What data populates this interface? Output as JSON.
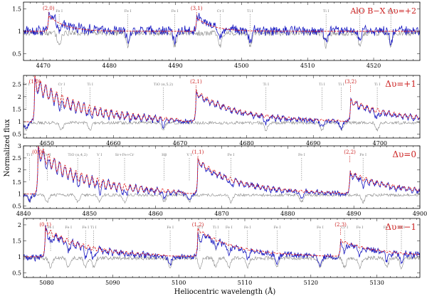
{
  "figure": {
    "ylabel": "Normalized flux",
    "xlabel": "Heliocentric wavelength (Å)"
  },
  "colors": {
    "observed": "#1515c0",
    "model": "#e02020",
    "reference": "#8a8a8a",
    "label": "#cc2222",
    "line_id": "#777777"
  },
  "chart_data": [
    {
      "type": "line",
      "title": "AlO B−X Δυ=+2",
      "xlim": [
        4467,
        4527
      ],
      "ylim": [
        0.35,
        1.65
      ],
      "yticks": [
        0.5,
        1,
        1.5
      ],
      "xticks": [
        4470,
        4480,
        4490,
        4500,
        4510,
        4520
      ],
      "series": [
        {
          "name": "observed spectrum",
          "color": "#1515c0"
        },
        {
          "name": "AlO model",
          "color": "#e02020"
        },
        {
          "name": "comparison spectrum",
          "color": "#8a8a8a"
        }
      ],
      "bandheads": [
        {
          "label": "(2,0)",
          "x": 4470.8
        },
        {
          "label": "(3,1)",
          "x": 4493.2
        }
      ],
      "line_ids": [
        {
          "label": "Fe I",
          "x": 4472.4
        },
        {
          "label": "Fe I",
          "x": 4482.8
        },
        {
          "label": "Fe I",
          "x": 4489.9
        },
        {
          "label": "Cr I",
          "x": 4496.8
        },
        {
          "label": "Ti I",
          "x": 4501.3
        },
        {
          "label": "Ti I",
          "x": 4512.8
        },
        {
          "label": "Fe I",
          "x": 4517.9
        },
        {
          "label": "Fe I",
          "x": 4522.6
        }
      ]
    },
    {
      "type": "line",
      "title": "Δυ=+1",
      "xlim": [
        4646.5,
        4706
      ],
      "ylim": [
        0.35,
        2.85
      ],
      "yticks": [
        0.5,
        1,
        1.5,
        2,
        2.5
      ],
      "xticks": [
        4650,
        4660,
        4670,
        4680,
        4690,
        4700
      ],
      "series": [
        {
          "name": "observed spectrum",
          "color": "#1515c0"
        },
        {
          "name": "AlO model",
          "color": "#e02020"
        },
        {
          "name": "comparison spectrum",
          "color": "#8a8a8a"
        }
      ],
      "bandheads": [
        {
          "label": "(1,0)",
          "x": 4648.2
        },
        {
          "label": "(2,1)",
          "x": 4672.4
        },
        {
          "label": "(3,2)",
          "x": 4695.6
        }
      ],
      "line_ids": [
        {
          "label": "Cr I",
          "x": 4646.9
        },
        {
          "label": "Cr I",
          "x": 4652.2
        },
        {
          "label": "Ti I",
          "x": 4656.5
        },
        {
          "label": "TiO (α,5,2)",
          "x": 4667.5
        },
        {
          "label": "Ti I",
          "x": 4682.9
        },
        {
          "label": "Ti I",
          "x": 4691.3
        },
        {
          "label": "Ti I",
          "x": 4694.2
        },
        {
          "label": "Ti I",
          "x": 4699.6
        }
      ]
    },
    {
      "type": "line",
      "title": "Δυ=0",
      "xlim": [
        4840,
        4900
      ],
      "ylim": [
        0.4,
        3.0
      ],
      "yticks": [
        0.5,
        1,
        1.5,
        2,
        2.5,
        3
      ],
      "xticks": [
        4840,
        4850,
        4860,
        4870,
        4880,
        4890,
        4900
      ],
      "series": [
        {
          "name": "observed spectrum",
          "color": "#1515c0"
        },
        {
          "name": "AlO model",
          "color": "#e02020"
        },
        {
          "name": "comparison spectrum",
          "color": "#8a8a8a"
        }
      ],
      "bandheads": [
        {
          "label": "(0,0)",
          "x": 4842.2
        },
        {
          "label": "(1,1)",
          "x": 4866.4
        },
        {
          "label": "(2,2)",
          "x": 4889.4
        }
      ],
      "line_ids": [
        {
          "label": "Ti I",
          "x": 4840.9
        },
        {
          "label": "Fe I",
          "x": 4843.6
        },
        {
          "label": "TiO (α,4,2)",
          "x": 4848.2
        },
        {
          "label": "V I",
          "x": 4851.5
        },
        {
          "label": "Sr+Fe+Cr",
          "x": 4855.3
        },
        {
          "label": "Hβ",
          "x": 4861.3
        },
        {
          "label": "V I",
          "x": 4865.1
        },
        {
          "label": "Fe I",
          "x": 4871.4
        },
        {
          "label": "Fe I",
          "x": 4882.1
        },
        {
          "label": "Fe I",
          "x": 4891.4
        }
      ]
    },
    {
      "type": "line",
      "title": "Δυ=−1",
      "xlim": [
        5076.5,
        5136.5
      ],
      "ylim": [
        0.35,
        2.2
      ],
      "yticks": [
        0.5,
        1,
        1.5,
        2
      ],
      "xticks": [
        5080,
        5090,
        5100,
        5110,
        5120,
        5130
      ],
      "series": [
        {
          "name": "observed spectrum",
          "color": "#1515c0"
        },
        {
          "name": "AlO model",
          "color": "#e02020"
        },
        {
          "name": "comparison spectrum",
          "color": "#8a8a8a"
        }
      ],
      "bandheads": [
        {
          "label": "(0,1)",
          "x": 5079.8
        },
        {
          "label": "(1,2)",
          "x": 5102.9
        },
        {
          "label": "(2,3)",
          "x": 5124.5
        }
      ],
      "line_ids": [
        {
          "label": "Fe I",
          "x": 5080.6
        },
        {
          "label": "Fe I",
          "x": 5083.3
        },
        {
          "label": "Fe I",
          "x": 5085.9
        },
        {
          "label": "Ti I",
          "x": 5087.1
        },
        {
          "label": "Fe I",
          "x": 5098.7
        },
        {
          "label": "Ti I",
          "x": 5103.2
        },
        {
          "label": "Ti I",
          "x": 5105.6
        },
        {
          "label": "Fe I",
          "x": 5107.6
        },
        {
          "label": "Fe I",
          "x": 5110.4
        },
        {
          "label": "Fe I",
          "x": 5114.9
        },
        {
          "label": "Fe I",
          "x": 5121.4
        },
        {
          "label": "Cr I",
          "x": 5125.1
        },
        {
          "label": "Fe I",
          "x": 5127.4
        },
        {
          "label": "Fe I",
          "x": 5131.5
        },
        {
          "label": "Fe I",
          "x": 5133.7
        }
      ]
    }
  ]
}
